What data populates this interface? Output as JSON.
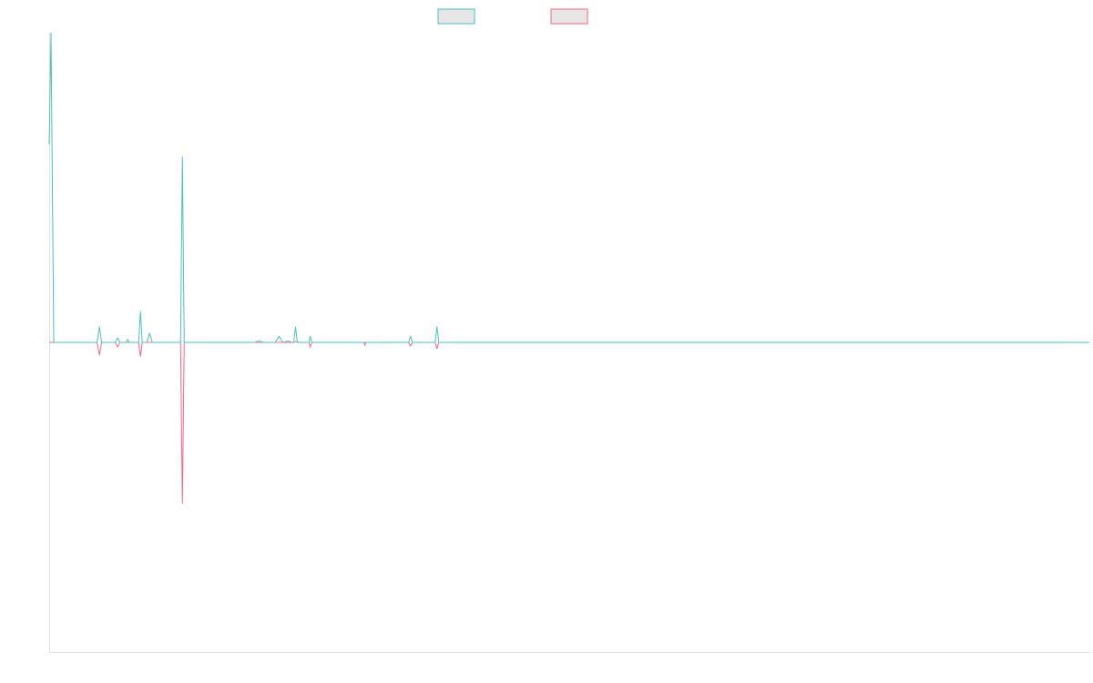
{
  "colors": {
    "series_a": "#4bc0c0",
    "series_a_fill": "#e6e6e6",
    "series_b": "#ff6384",
    "series_b_fill": "#e6e6e6",
    "axis": "#e0e0e0"
  },
  "chart_data": {
    "type": "line",
    "title": "",
    "xlabel": "",
    "ylabel": "",
    "grid": false,
    "legend_position": "top-center",
    "show_tick_labels": false,
    "xlim": [
      0,
      228
    ],
    "ylim": [
      -1,
      1
    ],
    "series": [
      {
        "name": "",
        "color_key": "series_a",
        "points": [
          [
            0,
            0.64
          ],
          [
            0.4,
            1.0
          ],
          [
            1,
            0
          ],
          [
            4,
            0
          ],
          [
            8,
            0
          ],
          [
            10.5,
            0
          ],
          [
            11,
            0.05
          ],
          [
            11.5,
            0
          ],
          [
            14.5,
            0
          ],
          [
            15,
            0.015
          ],
          [
            15.5,
            0
          ],
          [
            16.8,
            0
          ],
          [
            17.2,
            0.01
          ],
          [
            17.6,
            0
          ],
          [
            19.6,
            0
          ],
          [
            20,
            0.1
          ],
          [
            20.4,
            0
          ],
          [
            21.4,
            0
          ],
          [
            22,
            0.03
          ],
          [
            22.6,
            0
          ],
          [
            24,
            0
          ],
          [
            28.8,
            0
          ],
          [
            29.2,
            0.6
          ],
          [
            29.6,
            0
          ],
          [
            40,
            0
          ],
          [
            45,
            0
          ],
          [
            46,
            0.005
          ],
          [
            47,
            0
          ],
          [
            49.5,
            0
          ],
          [
            50.4,
            0.02
          ],
          [
            51.2,
            0
          ],
          [
            52.4,
            0.005
          ],
          [
            53.2,
            0
          ],
          [
            53.6,
            0
          ],
          [
            54,
            0.05
          ],
          [
            54.4,
            0
          ],
          [
            57,
            0
          ],
          [
            57.2,
            0.02
          ],
          [
            57.6,
            0
          ],
          [
            70,
            0
          ],
          [
            75,
            0
          ],
          [
            78.8,
            0
          ],
          [
            79.2,
            0.02
          ],
          [
            79.6,
            0
          ],
          [
            84.6,
            0
          ],
          [
            85,
            0.05
          ],
          [
            85.4,
            0
          ],
          [
            96,
            0
          ],
          [
            120,
            0
          ],
          [
            228,
            0
          ]
        ]
      },
      {
        "name": "",
        "color_key": "series_b",
        "points": [
          [
            0,
            0
          ],
          [
            10.5,
            0
          ],
          [
            11,
            -0.04
          ],
          [
            11.5,
            0
          ],
          [
            14.5,
            0
          ],
          [
            15,
            -0.015
          ],
          [
            15.5,
            0
          ],
          [
            19.6,
            0
          ],
          [
            20,
            -0.045
          ],
          [
            20.4,
            0
          ],
          [
            28.8,
            0
          ],
          [
            29.2,
            -0.52
          ],
          [
            29.6,
            0
          ],
          [
            53.6,
            0
          ],
          [
            54,
            0.003
          ],
          [
            54.4,
            0
          ],
          [
            57,
            0
          ],
          [
            57.2,
            -0.015
          ],
          [
            57.6,
            0
          ],
          [
            69,
            0
          ],
          [
            69.2,
            -0.01
          ],
          [
            69.4,
            0
          ],
          [
            78.8,
            0
          ],
          [
            79.2,
            -0.012
          ],
          [
            79.6,
            0
          ],
          [
            84.6,
            0
          ],
          [
            85,
            -0.02
          ],
          [
            85.4,
            0
          ],
          [
            228,
            0
          ]
        ]
      }
    ]
  }
}
